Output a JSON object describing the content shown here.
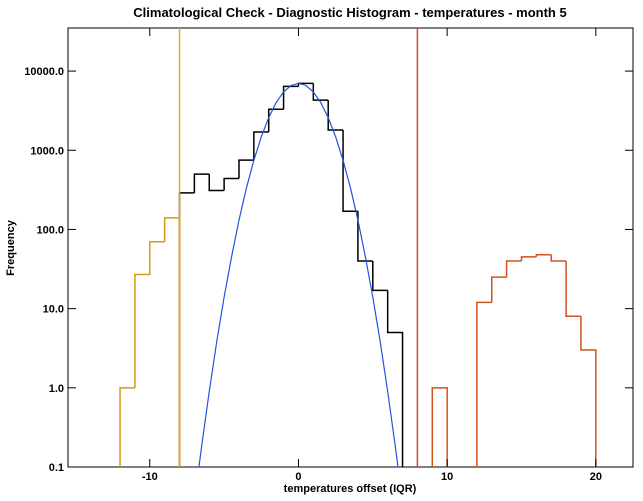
{
  "chart_data": {
    "type": "histogram",
    "title": "Climatological Check - Diagnostic Histogram - temperatures - month 5",
    "x_label": "temperatures offset (IQR)",
    "y_label": "Frequency",
    "log_y": true,
    "xlim": [
      -15.5,
      22.5
    ],
    "ylim": [
      0.1,
      35000
    ],
    "xticks": [
      -10,
      0,
      10,
      20
    ],
    "yticks": [
      {
        "value": 0.1,
        "label": "0.1"
      },
      {
        "value": 1,
        "label": "1.0"
      },
      {
        "value": 10,
        "label": "10.0"
      },
      {
        "value": 100,
        "label": "100.0"
      },
      {
        "value": 1000,
        "label": "1000.0"
      },
      {
        "value": 10000,
        "label": "10000.0"
      }
    ],
    "series": [
      {
        "color": "#000000",
        "bins": [
          -8,
          -7,
          -6,
          -5,
          -4,
          -3,
          -2,
          -1,
          0,
          1,
          2,
          3,
          4,
          5,
          6,
          7
        ],
        "values": [
          290,
          500,
          310,
          440,
          750,
          1700,
          3300,
          6400,
          7000,
          4300,
          1800,
          170,
          40,
          17,
          5
        ]
      },
      {
        "color": "#d49a1a",
        "bins": [
          -12,
          -11,
          -10,
          -9,
          -8
        ],
        "values": [
          1.0,
          27,
          70,
          140
        ]
      },
      {
        "color": "#d2521c",
        "bins": [
          9,
          10
        ],
        "values": [
          1.0
        ]
      },
      {
        "color": "#d2521c",
        "bins": [
          12,
          13,
          14,
          15,
          16,
          17,
          18,
          19,
          20
        ],
        "values": [
          12,
          25,
          40,
          45,
          48,
          40,
          8,
          3
        ]
      }
    ],
    "curve": {
      "color": "#2255dd",
      "x": [
        -6.8,
        -6.5,
        -6,
        -5.5,
        -5,
        -4.5,
        -4,
        -3.5,
        -3,
        -2.5,
        -2,
        -1.5,
        -1,
        -0.5,
        0,
        0.5,
        1,
        1.5,
        2,
        2.5,
        3,
        3.5,
        4,
        4.5,
        5,
        5.5,
        6,
        6.5,
        6.8
      ],
      "values": [
        0.071,
        0.19,
        0.9,
        3.8,
        14,
        45,
        131,
        333,
        746,
        1478,
        2588,
        4000,
        5458,
        6578,
        7000,
        6578,
        5458,
        4000,
        2588,
        1478,
        746,
        333,
        131,
        45,
        14,
        3.8,
        0.9,
        0.19,
        0.071
      ]
    },
    "vlines": [
      {
        "x": -8,
        "color": "#f0a030"
      },
      {
        "x": 8,
        "color": "#d64a1e"
      }
    ]
  }
}
